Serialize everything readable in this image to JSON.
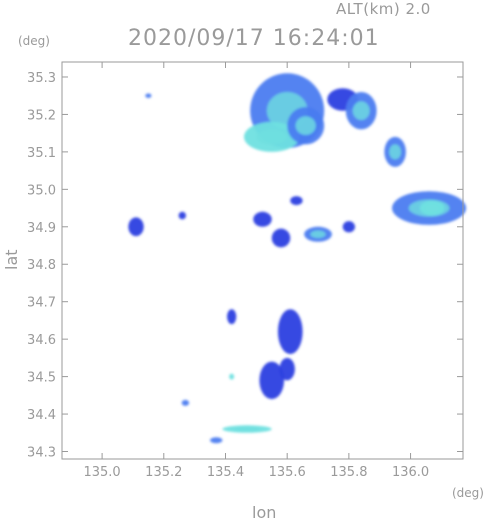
{
  "header": {
    "alt_label": "ALT(km) 2.0",
    "timestamp": "2020/09/17 16:24:01"
  },
  "colors": {
    "axis": "#9a9a9a",
    "echo_low": "#2c3fe0",
    "echo_mid": "#4b7cf0",
    "echo_high": "#6fe0e0"
  },
  "chart_data": {
    "type": "heatmap",
    "title": "2020/09/17 16:24:01",
    "subtitle": "ALT(km) 2.0",
    "xlabel": "lon",
    "ylabel": "lat",
    "x_unit": "(deg)",
    "y_unit": "(deg)",
    "xlim": [
      134.87,
      136.17
    ],
    "ylim": [
      34.28,
      35.34
    ],
    "x_ticks": [
      135.0,
      135.2,
      135.4,
      135.6,
      135.8,
      136.0
    ],
    "x_tick_labels": [
      "135.0",
      "135.2",
      "135.4",
      "135.6",
      "135.8",
      "136.0"
    ],
    "y_ticks": [
      34.3,
      34.4,
      34.5,
      34.6,
      34.7,
      34.8,
      34.9,
      35.0,
      35.1,
      35.2,
      35.3
    ],
    "y_tick_labels": [
      "34.3",
      "34.4",
      "34.5",
      "34.6",
      "34.7",
      "34.8",
      "34.9",
      "35.0",
      "35.1",
      "35.2",
      "35.3"
    ],
    "grid": false,
    "echoes": [
      {
        "lon": 135.6,
        "lat": 35.21,
        "rx": 0.12,
        "ry": 0.1,
        "level": 2
      },
      {
        "lon": 135.55,
        "lat": 35.14,
        "rx": 0.09,
        "ry": 0.04,
        "level": 3
      },
      {
        "lon": 135.66,
        "lat": 35.17,
        "rx": 0.06,
        "ry": 0.05,
        "level": 2
      },
      {
        "lon": 135.78,
        "lat": 35.24,
        "rx": 0.05,
        "ry": 0.03,
        "level": 1
      },
      {
        "lon": 135.84,
        "lat": 35.21,
        "rx": 0.05,
        "ry": 0.05,
        "level": 2
      },
      {
        "lon": 135.95,
        "lat": 35.1,
        "rx": 0.035,
        "ry": 0.04,
        "level": 2
      },
      {
        "lon": 136.06,
        "lat": 34.95,
        "rx": 0.12,
        "ry": 0.045,
        "level": 2
      },
      {
        "lon": 136.07,
        "lat": 34.95,
        "rx": 0.04,
        "ry": 0.02,
        "level": 3
      },
      {
        "lon": 135.11,
        "lat": 34.9,
        "rx": 0.025,
        "ry": 0.025,
        "level": 1
      },
      {
        "lon": 135.26,
        "lat": 34.93,
        "rx": 0.012,
        "ry": 0.01,
        "level": 1
      },
      {
        "lon": 135.52,
        "lat": 34.92,
        "rx": 0.03,
        "ry": 0.02,
        "level": 1
      },
      {
        "lon": 135.58,
        "lat": 34.87,
        "rx": 0.03,
        "ry": 0.025,
        "level": 1
      },
      {
        "lon": 135.7,
        "lat": 34.88,
        "rx": 0.045,
        "ry": 0.02,
        "level": 2
      },
      {
        "lon": 135.8,
        "lat": 34.9,
        "rx": 0.02,
        "ry": 0.015,
        "level": 1
      },
      {
        "lon": 135.61,
        "lat": 34.62,
        "rx": 0.04,
        "ry": 0.06,
        "level": 1
      },
      {
        "lon": 135.55,
        "lat": 34.49,
        "rx": 0.04,
        "ry": 0.05,
        "level": 1
      },
      {
        "lon": 135.6,
        "lat": 34.52,
        "rx": 0.025,
        "ry": 0.03,
        "level": 1
      },
      {
        "lon": 135.42,
        "lat": 34.66,
        "rx": 0.015,
        "ry": 0.02,
        "level": 1
      },
      {
        "lon": 135.27,
        "lat": 34.43,
        "rx": 0.012,
        "ry": 0.008,
        "level": 2
      },
      {
        "lon": 135.42,
        "lat": 34.5,
        "rx": 0.008,
        "ry": 0.008,
        "level": 3
      },
      {
        "lon": 135.47,
        "lat": 34.36,
        "rx": 0.08,
        "ry": 0.01,
        "level": 3
      },
      {
        "lon": 135.37,
        "lat": 34.33,
        "rx": 0.02,
        "ry": 0.008,
        "level": 2
      },
      {
        "lon": 135.15,
        "lat": 35.25,
        "rx": 0.01,
        "ry": 0.006,
        "level": 2
      },
      {
        "lon": 135.63,
        "lat": 34.97,
        "rx": 0.02,
        "ry": 0.012,
        "level": 1
      }
    ]
  }
}
